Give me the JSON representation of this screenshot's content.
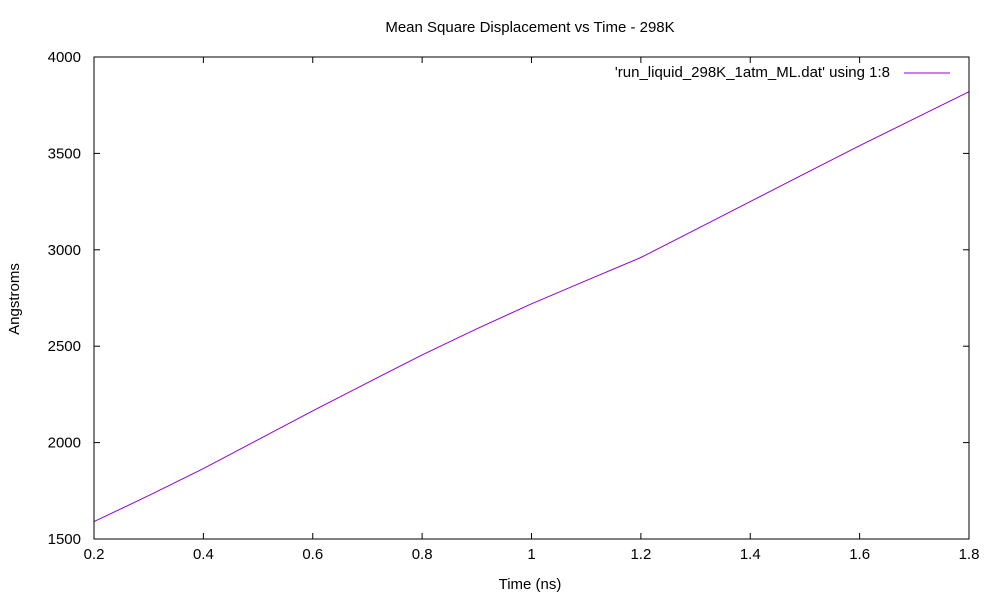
{
  "chart_data": {
    "type": "line",
    "title": "Mean Square Displacement vs Time - 298K",
    "xlabel": "Time (ns)",
    "ylabel": "Angstroms",
    "xlim": [
      0.2,
      1.8
    ],
    "ylim": [
      1500,
      4000
    ],
    "xticks": [
      0.2,
      0.4,
      0.6,
      0.8,
      1,
      1.2,
      1.4,
      1.6,
      1.8
    ],
    "xtick_labels": [
      "0.2",
      "0.4",
      "0.6",
      "0.8",
      "1",
      "1.2",
      "1.4",
      "1.6",
      "1.8"
    ],
    "yticks": [
      1500,
      2000,
      2500,
      3000,
      3500,
      4000
    ],
    "ytick_labels": [
      "1500",
      "2000",
      "2500",
      "3000",
      "3500",
      "4000"
    ],
    "grid": false,
    "legend_position": "top-right",
    "colors": {
      "series": "#9400d3",
      "frame": "#000000"
    },
    "series": [
      {
        "name": "'run_liquid_298K_1atm_ML.dat' using 1:8",
        "x": [
          0.2,
          0.3,
          0.4,
          0.5,
          0.6,
          0.7,
          0.8,
          0.9,
          1.0,
          1.1,
          1.2,
          1.3,
          1.4,
          1.5,
          1.6,
          1.7,
          1.8
        ],
        "y": [
          1590,
          1725,
          1865,
          2015,
          2165,
          2310,
          2455,
          2590,
          2720,
          2840,
          2960,
          3105,
          3250,
          3395,
          3540,
          3680,
          3820
        ]
      }
    ]
  }
}
